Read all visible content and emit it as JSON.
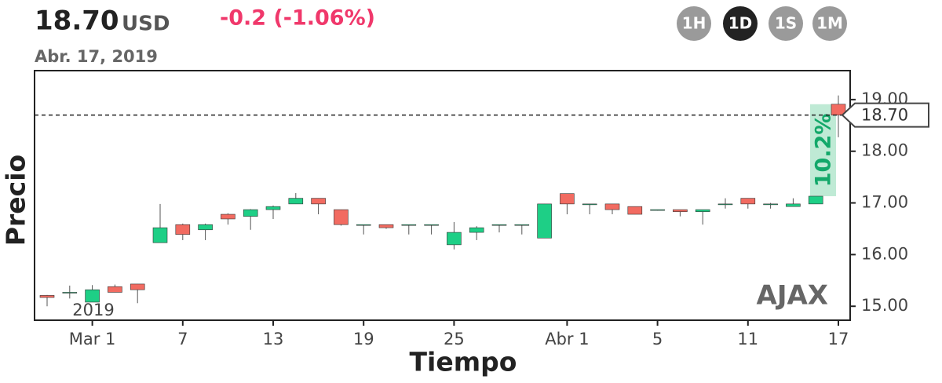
{
  "header": {
    "price": "18.70",
    "currency": "USD",
    "change": "-0.2 (-1.06%)",
    "date": "Abr. 17, 2019",
    "intervals": [
      "1H",
      "1D",
      "1S",
      "1M"
    ],
    "active_interval": 1
  },
  "chart_data": {
    "type": "candlestick",
    "xlabel": "Tiempo",
    "ylabel": "Precio",
    "watermark": "AJAX",
    "year_label": "2019",
    "categories": [
      null,
      null,
      "Mar 1",
      null,
      null,
      null,
      "7",
      null,
      null,
      null,
      "13",
      null,
      null,
      null,
      "19",
      null,
      null,
      null,
      "25",
      null,
      null,
      null,
      null,
      "Abr 1",
      null,
      null,
      null,
      "5",
      null,
      null,
      null,
      "11",
      null,
      null,
      null,
      "17"
    ],
    "open": [
      15.21,
      15.27,
      15.08,
      15.38,
      15.43,
      16.23,
      16.58,
      16.48,
      16.78,
      16.74,
      16.87,
      16.98,
      17.09,
      16.87,
      16.58,
      16.58,
      16.58,
      16.58,
      16.19,
      16.43,
      16.58,
      16.58,
      16.32,
      17.18,
      16.98,
      16.98,
      16.93,
      16.87,
      16.87,
      16.83,
      16.98,
      17.09,
      16.98,
      16.93,
      16.98,
      18.91
    ],
    "high": [
      15.22,
      15.4,
      15.41,
      15.42,
      15.43,
      16.98,
      16.6,
      16.6,
      16.8,
      16.88,
      16.95,
      17.19,
      17.09,
      16.87,
      16.58,
      16.58,
      16.58,
      16.58,
      16.63,
      16.55,
      16.58,
      16.58,
      16.98,
      17.18,
      16.98,
      16.98,
      16.93,
      16.87,
      16.87,
      16.87,
      17.09,
      17.09,
      17.0,
      17.09,
      17.13,
      19.08
    ],
    "low": [
      15.0,
      15.15,
      15.08,
      15.27,
      15.06,
      16.23,
      16.28,
      16.28,
      16.58,
      16.48,
      16.69,
      16.98,
      16.78,
      16.56,
      16.39,
      16.5,
      16.39,
      16.39,
      16.1,
      16.28,
      16.43,
      16.39,
      16.32,
      16.78,
      16.78,
      16.78,
      16.78,
      16.85,
      16.74,
      16.58,
      16.89,
      16.89,
      16.89,
      16.93,
      16.98,
      18.27
    ],
    "close": [
      15.17,
      15.27,
      15.32,
      15.27,
      15.32,
      16.52,
      16.39,
      16.58,
      16.69,
      16.87,
      16.93,
      17.09,
      16.98,
      16.58,
      16.58,
      16.52,
      16.58,
      16.58,
      16.43,
      16.52,
      16.58,
      16.58,
      16.98,
      16.98,
      16.98,
      16.87,
      16.78,
      16.87,
      16.83,
      16.87,
      16.98,
      16.98,
      16.98,
      16.98,
      17.13,
      18.7
    ],
    "up_color": "#1ecf86",
    "down_color": "#f26b61",
    "ylim": [
      14.73,
      19.56
    ],
    "yticks": [
      {
        "value": 15,
        "label": "15.00"
      },
      {
        "value": 16,
        "label": "16.00"
      },
      {
        "value": 17,
        "label": "17.00"
      },
      {
        "value": 18,
        "label": "18.00"
      },
      {
        "value": 19,
        "label": "19.00"
      }
    ],
    "last_price": {
      "value": 18.7,
      "label": "18.70"
    },
    "annotation": {
      "label": "10.2%",
      "color": "#13a86a"
    }
  }
}
